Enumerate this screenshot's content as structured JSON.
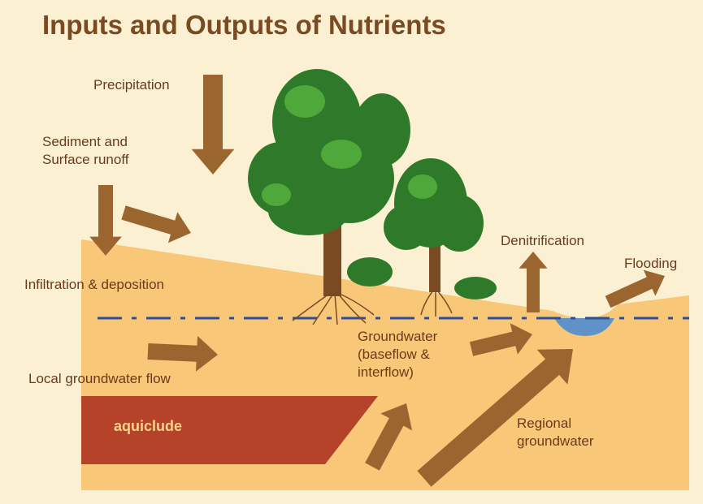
{
  "title": "Inputs and Outputs of Nutrients",
  "labels": [
    {
      "lines": [
        "Precipitation"
      ]
    },
    {
      "lines": [
        "Sediment and",
        "Surface runoff"
      ]
    },
    {
      "lines": [
        "Infiltration & deposition"
      ]
    },
    {
      "lines": [
        "Local groundwater flow"
      ]
    },
    {
      "lines": [
        "aquiclude"
      ]
    },
    {
      "lines": [
        "Groundwater",
        "(baseflow &",
        "interflow)"
      ]
    },
    {
      "lines": [
        "Denitrification"
      ]
    },
    {
      "lines": [
        "Flooding"
      ]
    },
    {
      "lines": [
        "Regional",
        "groundwater"
      ]
    }
  ]
}
